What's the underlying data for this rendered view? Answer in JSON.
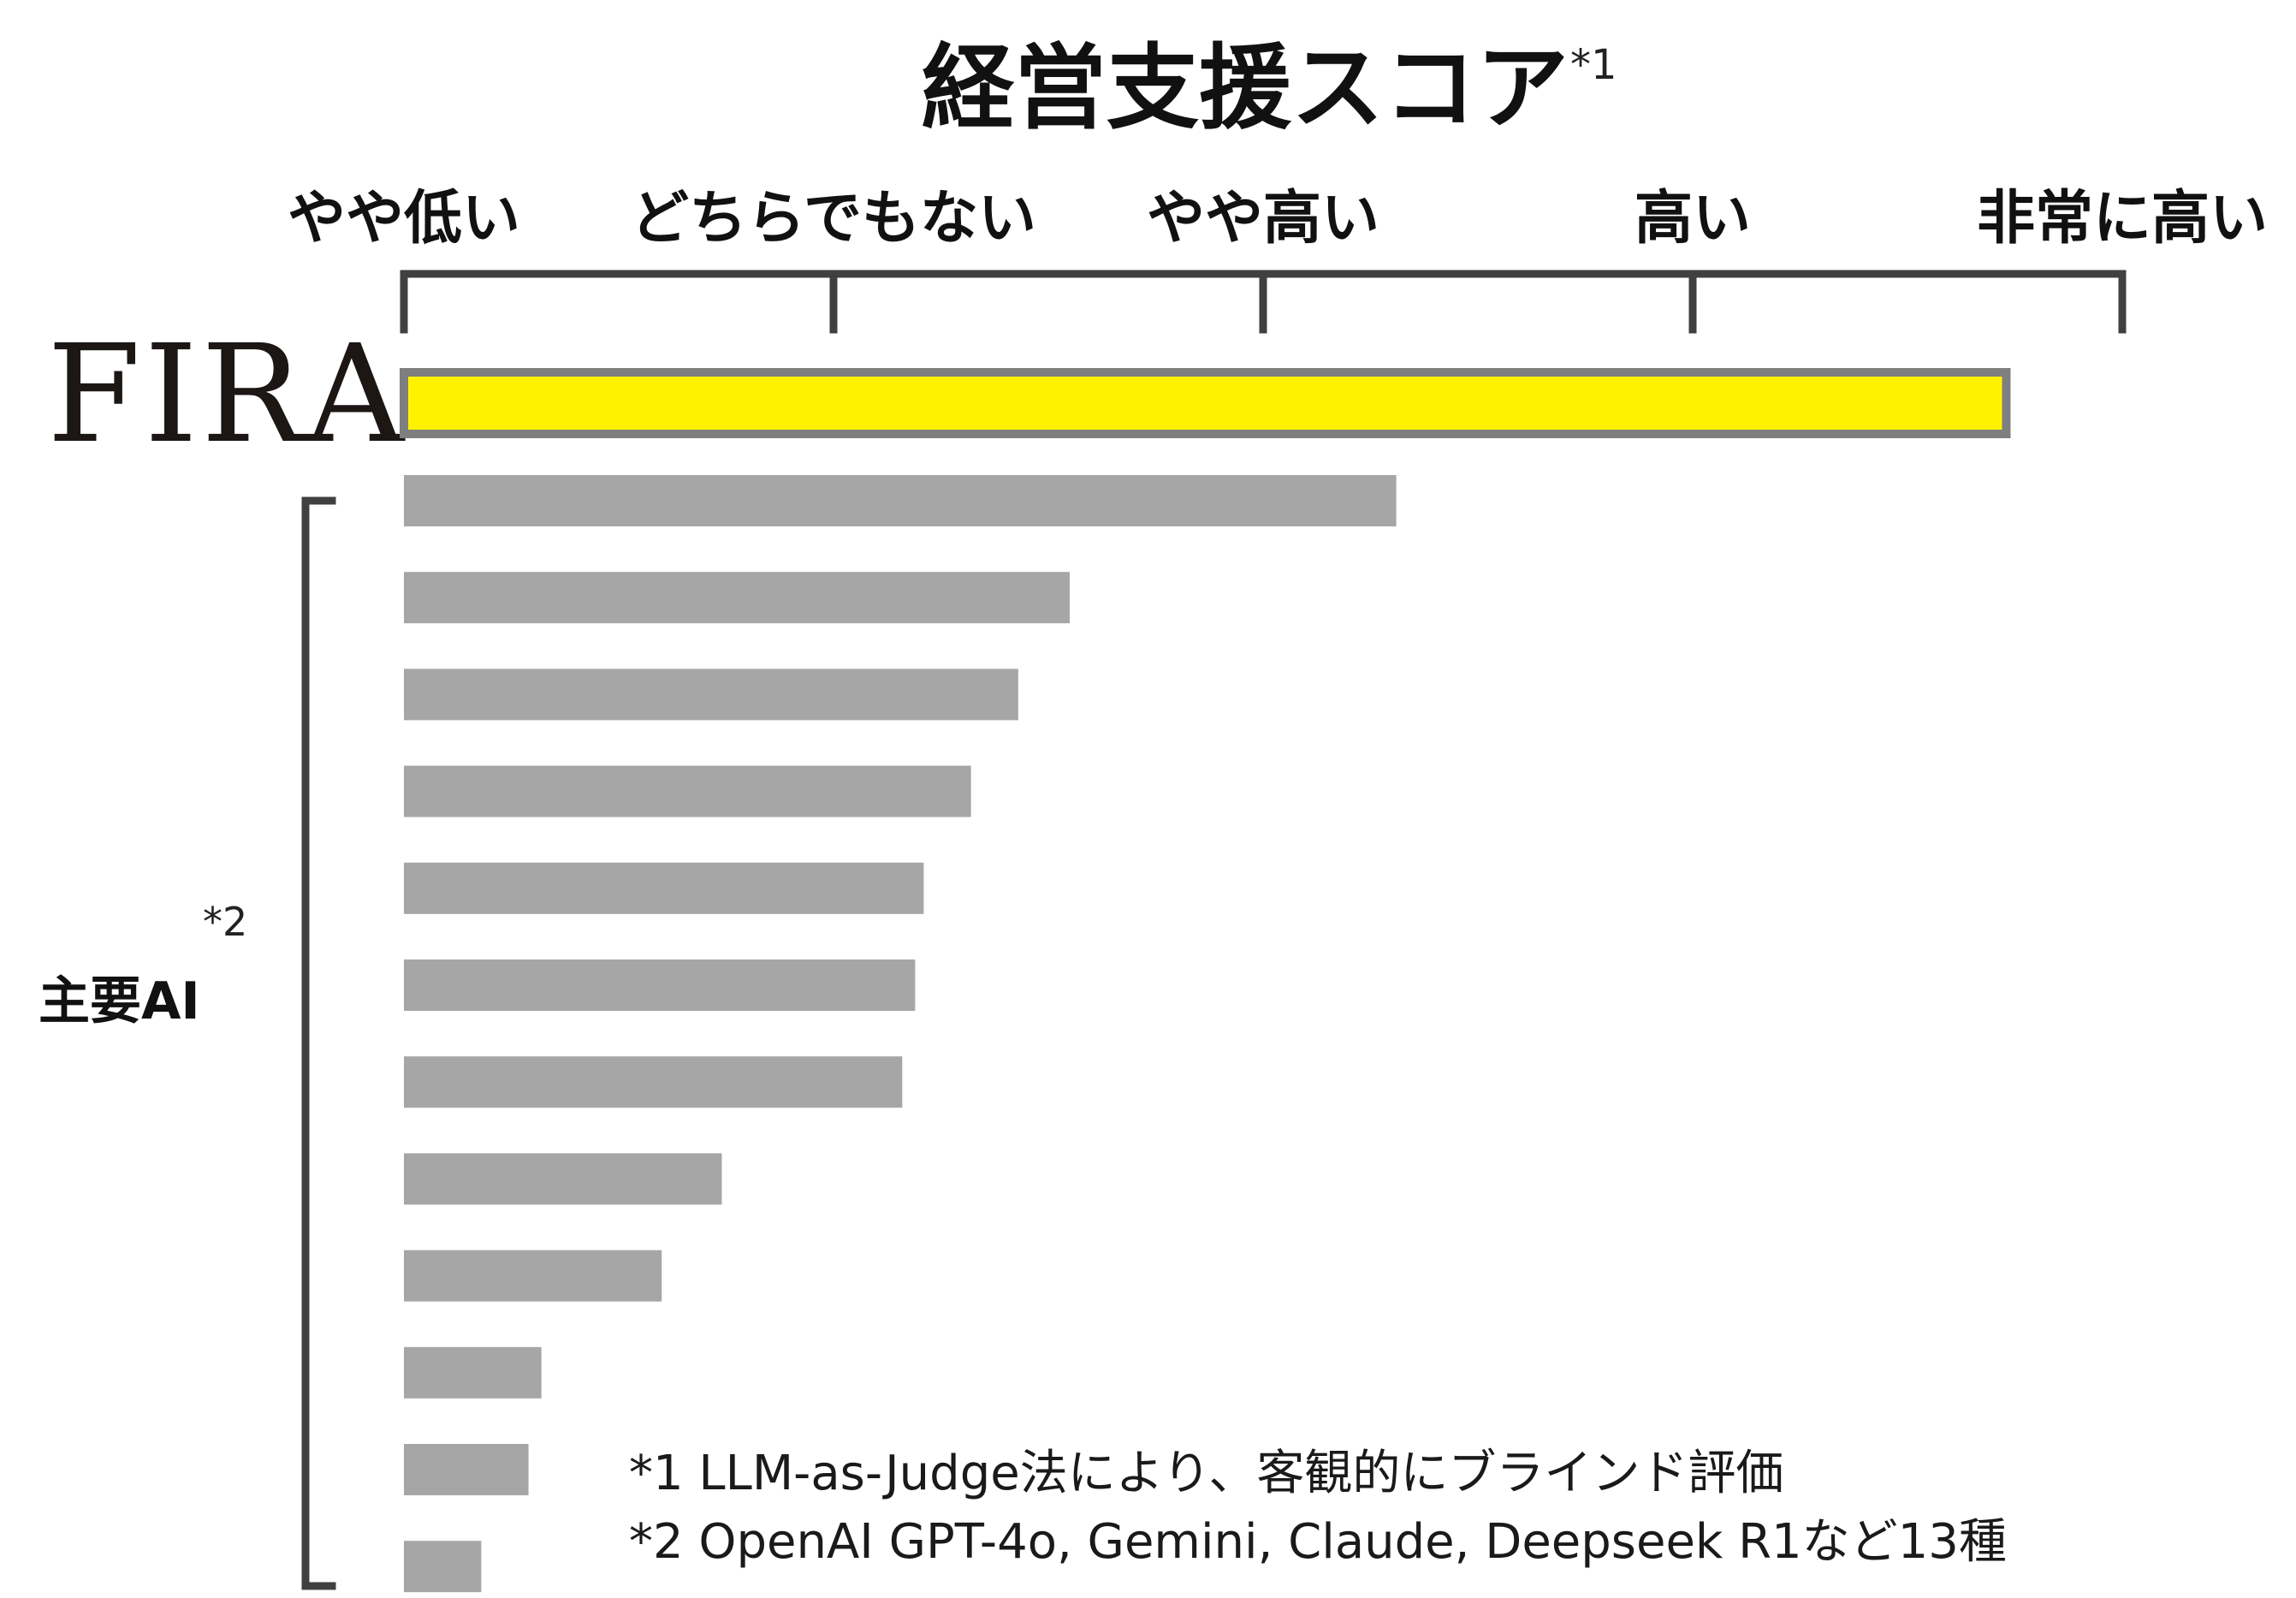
{
  "chart_data": {
    "type": "bar",
    "orientation": "horizontal",
    "title": "経営支援スコア",
    "title_note": "*1",
    "x_axis": {
      "tick_labels": [
        "やや低い",
        "どちらでもない",
        "やや高い",
        "高い",
        "非常に高い"
      ],
      "tick_values": [
        2,
        3,
        4,
        5,
        6
      ],
      "range": [
        2,
        6
      ],
      "position": "top"
    },
    "highlight": {
      "label": "FIRA",
      "value": 5.73,
      "color": "#FFF200",
      "border_color": "#7f7f7f"
    },
    "group": {
      "label": "主要AI",
      "note": "*2",
      "color": "#a6a6a6",
      "values": [
        4.31,
        3.55,
        3.43,
        3.32,
        3.21,
        3.19,
        3.16,
        2.74,
        2.6,
        2.32,
        2.29,
        2.18
      ]
    },
    "footnotes": [
      "*1 LLM-as-Judge法により、客観的にブラインド評価",
      "*2 OpenAI GPT-4o, Gemini, Claude, Deepseek R1など13種"
    ]
  }
}
